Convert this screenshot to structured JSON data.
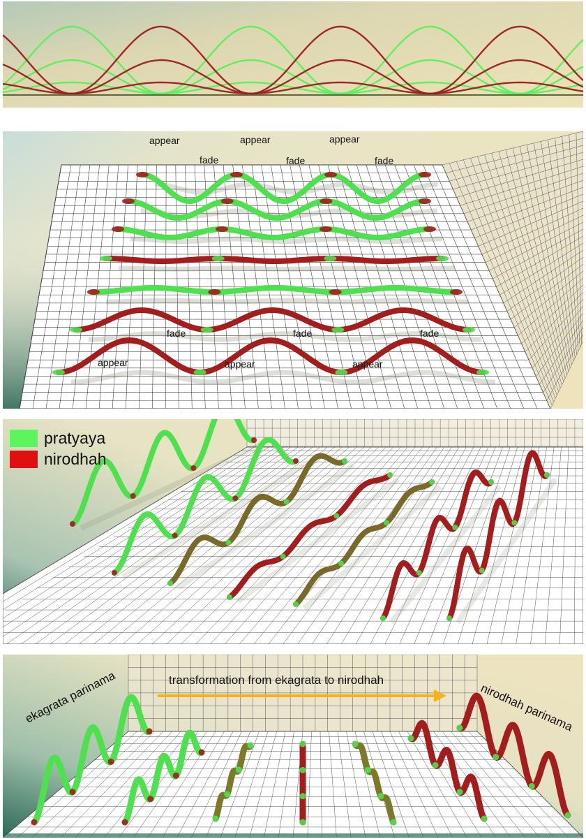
{
  "colors": {
    "pratyaya": "#5df55d",
    "nirodhah": "#e01010",
    "ribbon_green": "#4ee04e",
    "ribbon_red": "#a31d1d",
    "arrow": "#f5b21a"
  },
  "panel2": {
    "top_labels": {
      "appear": [
        "appear",
        "appear",
        "appear"
      ],
      "fade": [
        "fade",
        "fade",
        "fade"
      ]
    },
    "bottom_labels": {
      "fade": [
        "fade",
        "fade",
        "fade"
      ],
      "appear": [
        "appear",
        "appear",
        "appear"
      ]
    }
  },
  "legend": [
    {
      "label": "pratyaya",
      "color": "#5df55d"
    },
    {
      "label": "nirodhah",
      "color": "#e01010"
    }
  ],
  "panel4": {
    "arrow_label": "transformation from ekagrata to nirodhah",
    "left_label": "ekagrata parinama",
    "right_label": "nirodhah parinama"
  }
}
